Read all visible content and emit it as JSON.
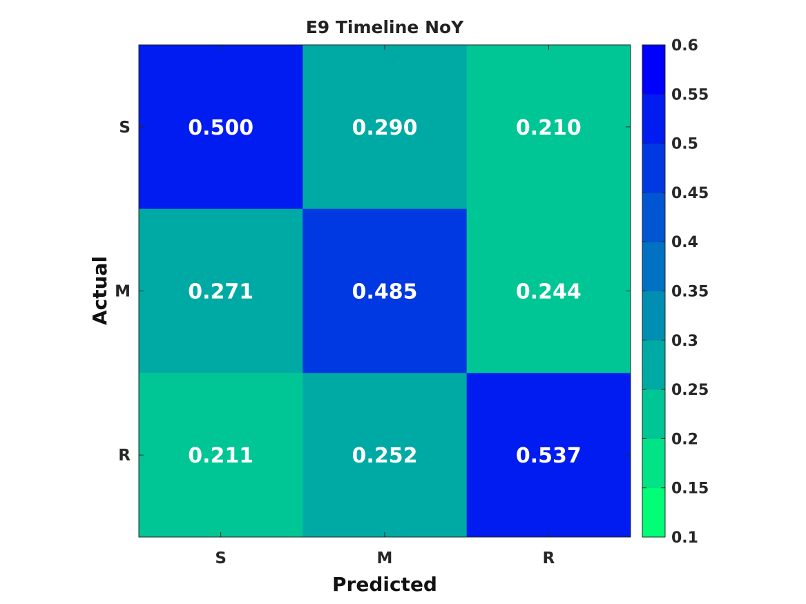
{
  "chart_data": {
    "type": "heatmap",
    "title": "E9 Timeline NoY",
    "xlabel": "Predicted",
    "ylabel": "Actual",
    "x_categories": [
      "S",
      "M",
      "R"
    ],
    "y_categories": [
      "S",
      "M",
      "R"
    ],
    "values": [
      [
        0.5,
        0.29,
        0.21
      ],
      [
        0.271,
        0.485,
        0.244
      ],
      [
        0.211,
        0.252,
        0.537
      ]
    ],
    "value_labels": [
      [
        "0.500",
        "0.290",
        "0.210"
      ],
      [
        "0.271",
        "0.485",
        "0.244"
      ],
      [
        "0.211",
        "0.252",
        "0.537"
      ]
    ],
    "colorbar": {
      "range": [
        0.1,
        0.6
      ],
      "ticks": [
        0.1,
        0.15,
        0.2,
        0.25,
        0.3,
        0.35,
        0.4,
        0.45,
        0.5,
        0.55,
        0.6
      ],
      "tick_labels": [
        "0.1",
        "0.15",
        "0.2",
        "0.25",
        "0.3",
        "0.35",
        "0.4",
        "0.45",
        "0.5",
        "0.55",
        "0.6"
      ],
      "levels": 10,
      "color_low": "#00ff77",
      "color_high": "#0000ff"
    }
  }
}
